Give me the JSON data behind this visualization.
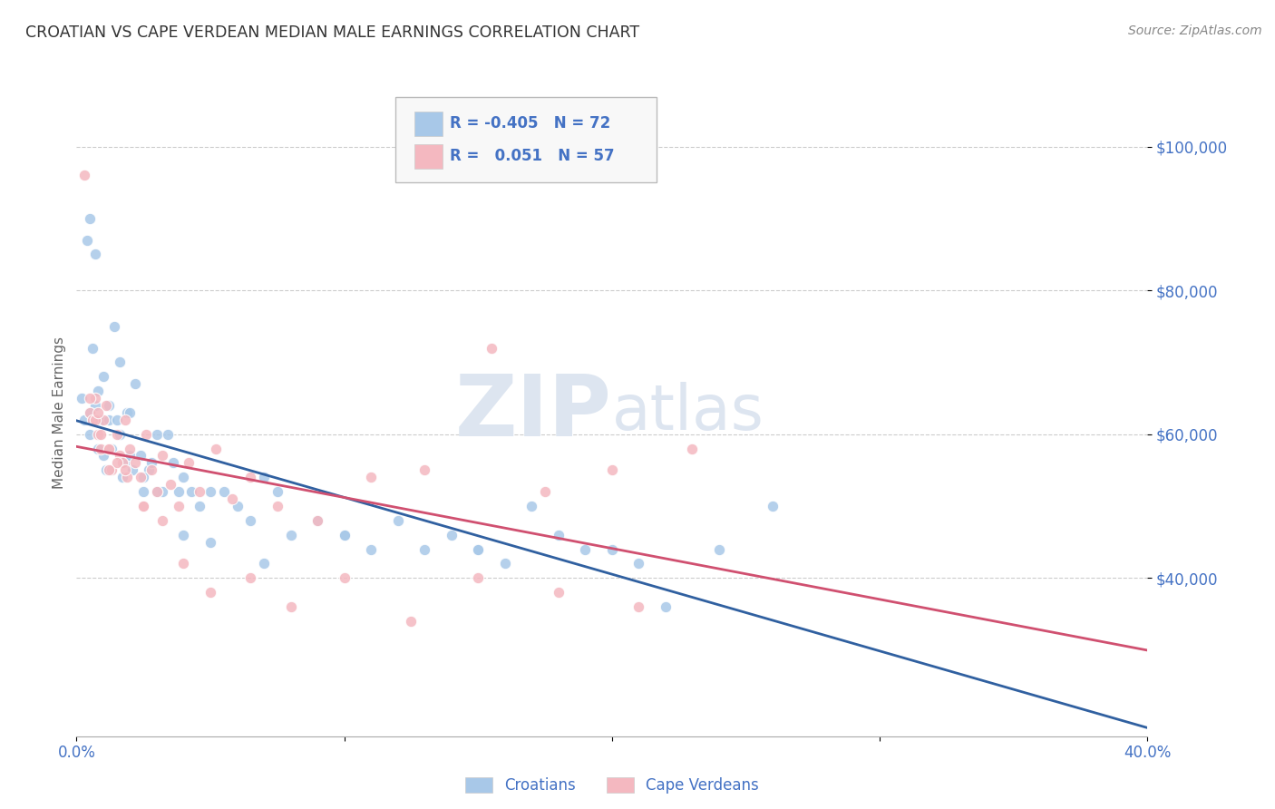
{
  "title": "CROATIAN VS CAPE VERDEAN MEDIAN MALE EARNINGS CORRELATION CHART",
  "source_text": "Source: ZipAtlas.com",
  "ylabel": "Median Male Earnings",
  "watermark_zip": "ZIP",
  "watermark_atlas": "atlas",
  "xmin": 0.0,
  "xmax": 0.4,
  "ymin": 18000,
  "ymax": 108000,
  "yticks": [
    40000,
    60000,
    80000,
    100000
  ],
  "ytick_labels": [
    "$40,000",
    "$60,000",
    "$80,000",
    "$100,000"
  ],
  "xticks": [
    0.0,
    0.1,
    0.2,
    0.3,
    0.4
  ],
  "xtick_labels": [
    "0.0%",
    "",
    "",
    "",
    "40.0%"
  ],
  "croatian_color": "#a8c8e8",
  "cape_verdean_color": "#f4b8c0",
  "croatian_line_color": "#3060a0",
  "cape_verdean_line_color": "#d05070",
  "legend_R_croatian": "-0.405",
  "legend_N_croatian": "72",
  "legend_R_cape_verdean": "0.051",
  "legend_N_cape_verdean": "57",
  "background_color": "#ffffff",
  "grid_color": "#cccccc",
  "title_color": "#333333",
  "axis_label_color": "#666666",
  "tick_color": "#4472c4",
  "watermark_color": "#dde5f0",
  "croatians_label": "Croatians",
  "cape_verdeans_label": "Cape Verdeans",
  "croatian_x": [
    0.002,
    0.003,
    0.004,
    0.005,
    0.005,
    0.006,
    0.007,
    0.007,
    0.008,
    0.009,
    0.01,
    0.01,
    0.011,
    0.012,
    0.012,
    0.013,
    0.014,
    0.015,
    0.016,
    0.017,
    0.018,
    0.019,
    0.02,
    0.021,
    0.022,
    0.024,
    0.025,
    0.027,
    0.028,
    0.03,
    0.032,
    0.034,
    0.036,
    0.038,
    0.04,
    0.043,
    0.046,
    0.05,
    0.055,
    0.06,
    0.065,
    0.07,
    0.075,
    0.08,
    0.09,
    0.1,
    0.11,
    0.12,
    0.13,
    0.14,
    0.15,
    0.16,
    0.17,
    0.18,
    0.19,
    0.2,
    0.21,
    0.22,
    0.24,
    0.26,
    0.005,
    0.008,
    0.012,
    0.016,
    0.02,
    0.025,
    0.03,
    0.04,
    0.05,
    0.07,
    0.1,
    0.15
  ],
  "croatian_y": [
    65000,
    62000,
    87000,
    90000,
    60000,
    72000,
    85000,
    64000,
    66000,
    62000,
    57000,
    68000,
    55000,
    62000,
    64000,
    58000,
    75000,
    62000,
    70000,
    54000,
    56000,
    63000,
    63000,
    55000,
    67000,
    57000,
    52000,
    55000,
    56000,
    60000,
    52000,
    60000,
    56000,
    52000,
    54000,
    52000,
    50000,
    52000,
    52000,
    50000,
    48000,
    54000,
    52000,
    46000,
    48000,
    46000,
    44000,
    48000,
    44000,
    46000,
    44000,
    42000,
    50000,
    46000,
    44000,
    44000,
    42000,
    36000,
    44000,
    50000,
    63000,
    58000,
    55000,
    60000,
    57000,
    54000,
    52000,
    46000,
    45000,
    42000,
    46000,
    44000
  ],
  "cape_verdean_x": [
    0.003,
    0.005,
    0.006,
    0.007,
    0.008,
    0.009,
    0.01,
    0.011,
    0.012,
    0.013,
    0.015,
    0.016,
    0.017,
    0.018,
    0.02,
    0.022,
    0.024,
    0.026,
    0.028,
    0.03,
    0.032,
    0.035,
    0.038,
    0.042,
    0.046,
    0.052,
    0.058,
    0.065,
    0.075,
    0.09,
    0.11,
    0.13,
    0.155,
    0.175,
    0.2,
    0.23,
    0.005,
    0.007,
    0.009,
    0.012,
    0.015,
    0.019,
    0.025,
    0.032,
    0.04,
    0.05,
    0.065,
    0.08,
    0.1,
    0.125,
    0.15,
    0.18,
    0.21,
    0.008,
    0.012,
    0.018,
    0.025
  ],
  "cape_verdean_y": [
    96000,
    63000,
    62000,
    65000,
    60000,
    58000,
    62000,
    64000,
    58000,
    55000,
    60000,
    57000,
    56000,
    62000,
    58000,
    56000,
    54000,
    60000,
    55000,
    52000,
    57000,
    53000,
    50000,
    56000,
    52000,
    58000,
    51000,
    54000,
    50000,
    48000,
    54000,
    55000,
    72000,
    52000,
    55000,
    58000,
    65000,
    62000,
    60000,
    58000,
    56000,
    54000,
    50000,
    48000,
    42000,
    38000,
    40000,
    36000,
    40000,
    34000,
    40000,
    38000,
    36000,
    63000,
    55000,
    55000,
    50000
  ]
}
